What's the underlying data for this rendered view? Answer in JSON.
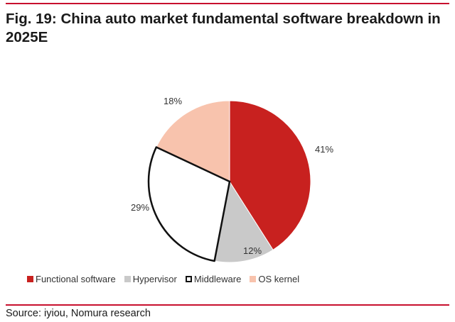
{
  "figure": {
    "title": "Fig. 19: China auto market fundamental software breakdown in 2025E",
    "source": "Source: iyiou, Nomura research"
  },
  "chart_data": {
    "type": "pie",
    "title": "Fig. 19: China auto market fundamental software breakdown in 2025E",
    "unit": "%",
    "slices": [
      {
        "name": "Functional software",
        "value": 41,
        "label": "41%",
        "color": "#c8211f",
        "outlined": false
      },
      {
        "name": "Hypervisor",
        "value": 12,
        "label": "12%",
        "color": "#c9c9c9",
        "outlined": false
      },
      {
        "name": "Middleware",
        "value": 29,
        "label": "29%",
        "color": "#ffffff",
        "outlined": true
      },
      {
        "name": "OS kernel",
        "value": 18,
        "label": "18%",
        "color": "#f8c3ad",
        "outlined": false
      }
    ],
    "start": "12 o'clock",
    "direction": "clockwise",
    "legend_position": "bottom"
  },
  "colors": {
    "accent_rule": "#c8102e",
    "outline": "#111111"
  }
}
